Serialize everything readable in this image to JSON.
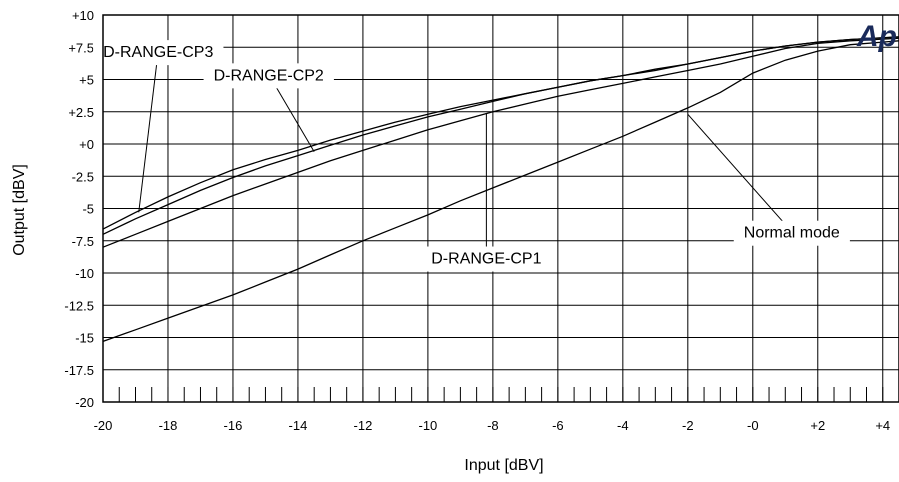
{
  "chart_data": {
    "type": "line",
    "xlabel": "Input [dBV]",
    "ylabel": "Output [dBV]",
    "xlim": [
      -20,
      4.5
    ],
    "ylim": [
      -20,
      10
    ],
    "grid": true,
    "x_ticks": [
      -20,
      -18,
      -16,
      -14,
      -12,
      -10,
      -8,
      -6,
      -4,
      -2,
      0,
      2,
      4
    ],
    "x_tick_labels": [
      "-20",
      "-18",
      "-16",
      "-14",
      "-12",
      "-10",
      "-8",
      "-6",
      "-4",
      "-2",
      "-0",
      "+2",
      "+4"
    ],
    "y_ticks": [
      10,
      7.5,
      5,
      2.5,
      0,
      -2.5,
      -5,
      -7.5,
      -10,
      -12.5,
      -15,
      -17.5,
      -20
    ],
    "y_tick_labels": [
      "+10",
      "+7.5",
      "+5",
      "+2.5",
      "+0",
      "-2.5",
      "-5",
      "-7.5",
      "-10",
      "-12.5",
      "-15",
      "-17.5",
      "-20"
    ],
    "logo_text": "Ap",
    "series": [
      {
        "name": "D-RANGE-CP3",
        "points": [
          [
            -20,
            -6.6
          ],
          [
            -19,
            -5.3
          ],
          [
            -18,
            -4.1
          ],
          [
            -17,
            -3.0
          ],
          [
            -16,
            -2.0
          ],
          [
            -15,
            -1.2
          ],
          [
            -14,
            -0.5
          ],
          [
            -13,
            0.3
          ],
          [
            -12,
            1.0
          ],
          [
            -11,
            1.7
          ],
          [
            -10,
            2.3
          ],
          [
            -9,
            2.9
          ],
          [
            -8,
            3.4
          ],
          [
            -7,
            3.9
          ],
          [
            -6,
            4.4
          ],
          [
            -5,
            4.9
          ],
          [
            -4,
            5.3
          ],
          [
            -3,
            5.8
          ],
          [
            -2,
            6.2
          ],
          [
            -1,
            6.7
          ],
          [
            0,
            7.2
          ],
          [
            1,
            7.6
          ],
          [
            2,
            7.9
          ],
          [
            3,
            8.1
          ],
          [
            4.5,
            8.3
          ]
        ]
      },
      {
        "name": "D-RANGE-CP2",
        "points": [
          [
            -20,
            -7.0
          ],
          [
            -19,
            -5.8
          ],
          [
            -18,
            -4.7
          ],
          [
            -17,
            -3.6
          ],
          [
            -16,
            -2.6
          ],
          [
            -15,
            -1.7
          ],
          [
            -14,
            -0.9
          ],
          [
            -13,
            -0.1
          ],
          [
            -12,
            0.7
          ],
          [
            -11,
            1.4
          ],
          [
            -10,
            2.1
          ],
          [
            -9,
            2.7
          ],
          [
            -8,
            3.3
          ],
          [
            -7,
            3.9
          ],
          [
            -6,
            4.4
          ],
          [
            -5,
            4.9
          ],
          [
            -4,
            5.3
          ],
          [
            -3,
            5.7
          ],
          [
            -2,
            6.2
          ],
          [
            -1,
            6.7
          ],
          [
            0,
            7.2
          ],
          [
            1,
            7.6
          ],
          [
            2,
            7.9
          ],
          [
            3,
            8.1
          ],
          [
            4.5,
            8.3
          ]
        ]
      },
      {
        "name": "D-RANGE-CP1",
        "points": [
          [
            -20,
            -8.0
          ],
          [
            -19,
            -7.0
          ],
          [
            -18,
            -6.0
          ],
          [
            -17,
            -5.0
          ],
          [
            -16,
            -4.0
          ],
          [
            -15,
            -3.1
          ],
          [
            -14,
            -2.2
          ],
          [
            -13,
            -1.3
          ],
          [
            -12,
            -0.5
          ],
          [
            -11,
            0.3
          ],
          [
            -10,
            1.1
          ],
          [
            -9,
            1.8
          ],
          [
            -8,
            2.5
          ],
          [
            -7,
            3.1
          ],
          [
            -6,
            3.7
          ],
          [
            -5,
            4.2
          ],
          [
            -4,
            4.7
          ],
          [
            -3,
            5.2
          ],
          [
            -2,
            5.7
          ],
          [
            -1,
            6.2
          ],
          [
            0,
            6.8
          ],
          [
            1,
            7.4
          ],
          [
            2,
            7.8
          ],
          [
            3,
            8.0
          ],
          [
            4.5,
            8.2
          ]
        ]
      },
      {
        "name": "Normal mode",
        "points": [
          [
            -20,
            -15.3
          ],
          [
            -19,
            -14.4
          ],
          [
            -18,
            -13.5
          ],
          [
            -17,
            -12.6
          ],
          [
            -16,
            -11.7
          ],
          [
            -15,
            -10.7
          ],
          [
            -14,
            -9.7
          ],
          [
            -13,
            -8.6
          ],
          [
            -12,
            -7.5
          ],
          [
            -11,
            -6.5
          ],
          [
            -10,
            -5.5
          ],
          [
            -9,
            -4.4
          ],
          [
            -8,
            -3.4
          ],
          [
            -7,
            -2.4
          ],
          [
            -6,
            -1.4
          ],
          [
            -5,
            -0.4
          ],
          [
            -4,
            0.6
          ],
          [
            -3,
            1.7
          ],
          [
            -2,
            2.8
          ],
          [
            -1,
            4.0
          ],
          [
            0,
            5.5
          ],
          [
            1,
            6.5
          ],
          [
            2,
            7.2
          ],
          [
            3,
            7.7
          ],
          [
            4,
            7.9
          ],
          [
            4.5,
            8.0
          ]
        ]
      }
    ],
    "annotations": [
      {
        "text": "D-RANGE-CP3",
        "series": "D-RANGE-CP3",
        "label_x": -18.3,
        "label_y": 7.2,
        "point": [
          -18.9,
          -5.3
        ]
      },
      {
        "text": "D-RANGE-CP2",
        "series": "D-RANGE-CP2",
        "label_x": -14.9,
        "label_y": 5.4,
        "point": [
          -13.5,
          -0.6
        ]
      },
      {
        "text": "D-RANGE-CP1",
        "series": "D-RANGE-CP1",
        "label_x": -8.2,
        "label_y": -8.8,
        "point": [
          -8.2,
          2.4
        ]
      },
      {
        "text": "Normal mode",
        "series": "Normal mode",
        "label_x": 1.2,
        "label_y": -6.8,
        "point": [
          -2.0,
          2.3
        ]
      }
    ]
  }
}
